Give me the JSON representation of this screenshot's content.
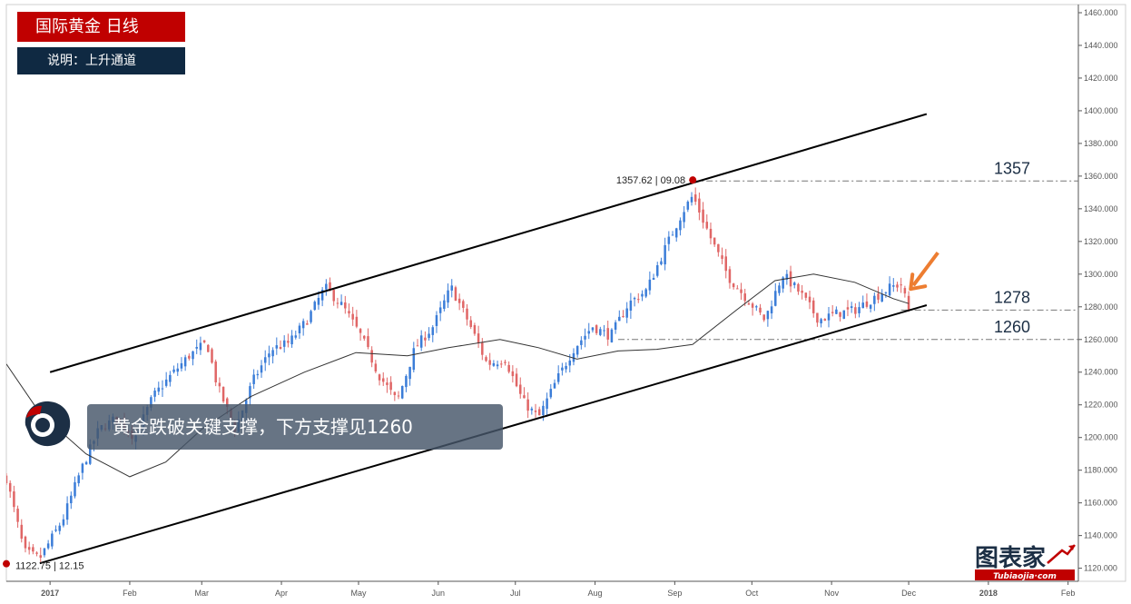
{
  "header": {
    "title": "国际黄金  日线",
    "description": "说明：上升通道"
  },
  "headline": "黄金跌破关键支撑，下方支撑见1260",
  "brand": {
    "name": "图表家",
    "url": "Tubiaojia·com"
  },
  "chart_data": {
    "type": "candlestick",
    "title": "国际黄金  日线",
    "colors": {
      "up": "#3b7dd8",
      "down": "#e06666",
      "channel": "#000000",
      "ma": "#333333",
      "arrow": "#ed7d31",
      "marker": "#c00000"
    },
    "y_ticks": [
      1120,
      1140,
      1160,
      1180,
      1200,
      1220,
      1240,
      1260,
      1280,
      1300,
      1320,
      1340,
      1360,
      1380,
      1400,
      1420,
      1440,
      1460
    ],
    "y_tick_labels": [
      "1120.000",
      "1140.000",
      "1160.000",
      "1180.000",
      "1200.000",
      "1220.000",
      "1240.000",
      "1260.000",
      "1280.000",
      "1300.000",
      "1320.000",
      "1340.000",
      "1360.000",
      "1380.000",
      "1400.000",
      "1420.000",
      "1440.000",
      "1460.000"
    ],
    "x_ticks": [
      "2017-01-01",
      "2017-02-01",
      "2017-03-01",
      "2017-04-01",
      "2017-05-01",
      "2017-06-01",
      "2017-07-01",
      "2017-08-01",
      "2017-09-01",
      "2017-10-01",
      "2017-11-01",
      "2017-12-01",
      "2018-01-01",
      "2018-02-01"
    ],
    "x_tick_labels": [
      "2017",
      "Feb",
      "Mar",
      "Apr",
      "May",
      "Jun",
      "Jul",
      "Aug",
      "Sep",
      "Oct",
      "Nov",
      "Dec",
      "2018",
      "Feb"
    ],
    "ylim": [
      1112,
      1465
    ],
    "xlim": [
      "2016-12-15",
      "2018-02-05"
    ],
    "close_path": [
      [
        "2016-12-15",
        1175
      ],
      [
        "2016-12-22",
        1130
      ],
      [
        "2016-12-28",
        1126
      ],
      [
        "2017-01-06",
        1150
      ],
      [
        "2017-01-13",
        1180
      ],
      [
        "2017-01-20",
        1205
      ],
      [
        "2017-01-27",
        1212
      ],
      [
        "2017-02-03",
        1200
      ],
      [
        "2017-02-10",
        1225
      ],
      [
        "2017-02-17",
        1238
      ],
      [
        "2017-02-24",
        1250
      ],
      [
        "2017-03-03",
        1258
      ],
      [
        "2017-03-07",
        1232
      ],
      [
        "2017-03-14",
        1205
      ],
      [
        "2017-03-21",
        1235
      ],
      [
        "2017-03-28",
        1254
      ],
      [
        "2017-04-04",
        1258
      ],
      [
        "2017-04-11",
        1272
      ],
      [
        "2017-04-18",
        1292
      ],
      [
        "2017-04-25",
        1280
      ],
      [
        "2017-05-02",
        1262
      ],
      [
        "2017-05-09",
        1238
      ],
      [
        "2017-05-16",
        1222
      ],
      [
        "2017-05-23",
        1255
      ],
      [
        "2017-05-30",
        1268
      ],
      [
        "2017-06-06",
        1292
      ],
      [
        "2017-06-13",
        1270
      ],
      [
        "2017-06-20",
        1245
      ],
      [
        "2017-06-27",
        1248
      ],
      [
        "2017-07-04",
        1222
      ],
      [
        "2017-07-10",
        1212
      ],
      [
        "2017-07-17",
        1235
      ],
      [
        "2017-07-24",
        1255
      ],
      [
        "2017-07-31",
        1268
      ],
      [
        "2017-08-07",
        1262
      ],
      [
        "2017-08-14",
        1282
      ],
      [
        "2017-08-21",
        1290
      ],
      [
        "2017-08-28",
        1315
      ],
      [
        "2017-09-04",
        1338
      ],
      [
        "2017-09-08",
        1348
      ],
      [
        "2017-09-15",
        1322
      ],
      [
        "2017-09-22",
        1298
      ],
      [
        "2017-09-29",
        1285
      ],
      [
        "2017-10-06",
        1272
      ],
      [
        "2017-10-13",
        1300
      ],
      [
        "2017-10-20",
        1288
      ],
      [
        "2017-10-27",
        1272
      ],
      [
        "2017-11-03",
        1276
      ],
      [
        "2017-11-10",
        1278
      ],
      [
        "2017-11-17",
        1285
      ],
      [
        "2017-11-24",
        1292
      ],
      [
        "2017-11-28",
        1294
      ],
      [
        "2017-12-01",
        1278
      ]
    ],
    "candle_count": 238,
    "ma_line": [
      [
        "2016-12-15",
        1245
      ],
      [
        "2016-12-28",
        1215
      ],
      [
        "2017-01-15",
        1190
      ],
      [
        "2017-02-01",
        1176
      ],
      [
        "2017-02-15",
        1185
      ],
      [
        "2017-03-01",
        1205
      ],
      [
        "2017-03-20",
        1225
      ],
      [
        "2017-04-10",
        1240
      ],
      [
        "2017-04-30",
        1252
      ],
      [
        "2017-05-20",
        1250
      ],
      [
        "2017-06-05",
        1255
      ],
      [
        "2017-06-25",
        1260
      ],
      [
        "2017-07-10",
        1255
      ],
      [
        "2017-07-25",
        1248
      ],
      [
        "2017-08-10",
        1253
      ],
      [
        "2017-08-25",
        1254
      ],
      [
        "2017-09-08",
        1257
      ],
      [
        "2017-09-25",
        1278
      ],
      [
        "2017-10-10",
        1296
      ],
      [
        "2017-10-25",
        1300
      ],
      [
        "2017-11-10",
        1295
      ],
      [
        "2017-11-25",
        1285
      ],
      [
        "2017-12-01",
        1282
      ]
    ],
    "channel": {
      "upper": [
        [
          "2017-01-01",
          1240
        ],
        [
          "2017-12-08",
          1398
        ]
      ],
      "lower": [
        [
          "2016-12-28",
          1123
        ],
        [
          "2017-12-08",
          1281
        ]
      ]
    },
    "levels": [
      {
        "value": 1357,
        "label": "1357",
        "from": "2017-09-08"
      },
      {
        "value": 1278,
        "label": "1278",
        "from": "2017-11-28"
      },
      {
        "value": 1260,
        "label": "1260",
        "from": "2017-08-10"
      }
    ],
    "annotations": [
      {
        "date": "2017-09-08",
        "value": 1357.62,
        "price_label": "1357.62",
        "date_label": "09.08",
        "position": "left"
      },
      {
        "date": "2016-12-15",
        "value": 1122.75,
        "price_label": "1122.75",
        "date_label": "12.15",
        "position": "right"
      }
    ],
    "arrow": {
      "date": "2017-11-30",
      "value": 1282,
      "direction": "down-left"
    }
  }
}
